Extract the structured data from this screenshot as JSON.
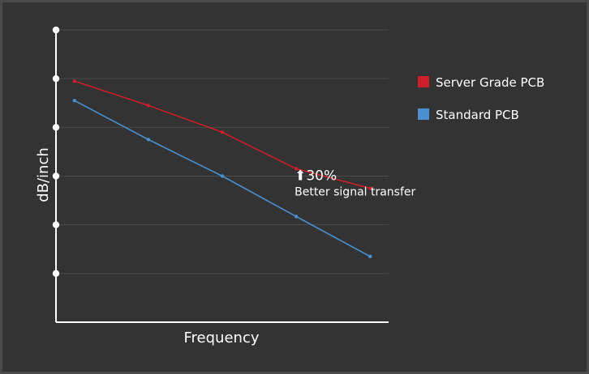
{
  "chart_data": {
    "type": "line",
    "title": "",
    "xlabel": "Frequency",
    "ylabel": "dB/inch",
    "x": [
      1,
      2,
      3,
      4,
      5
    ],
    "xlim": [
      0.75,
      5.25
    ],
    "ylim": [
      0,
      6
    ],
    "y_ticks": [
      1,
      2,
      3,
      4,
      5,
      6
    ],
    "y_tick_labels_shown": false,
    "x_tick_labels_shown": false,
    "grid": "horizontal",
    "legend_position": "right",
    "series": [
      {
        "name": "Server Grade PCB",
        "color": "#cc1f2a",
        "values": [
          4.95,
          4.45,
          3.9,
          3.15,
          2.75
        ]
      },
      {
        "name": "Standard PCB",
        "color": "#4a90d0",
        "values": [
          4.55,
          3.75,
          3.0,
          2.17,
          1.35
        ]
      }
    ],
    "annotation": {
      "arrow_glyph": "⬆",
      "headline": "30%",
      "text": "Better signal transfer",
      "x": 4,
      "y": 2.55
    }
  },
  "colors": {
    "background": "#333333",
    "border": "#4a4a4a",
    "axis": "#ffffff",
    "grid": "#4c4c4c"
  }
}
